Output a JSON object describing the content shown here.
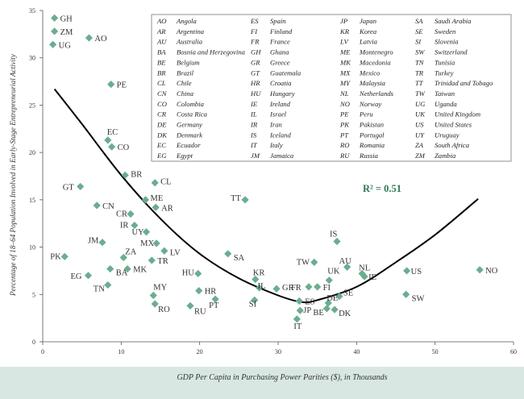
{
  "chart_data": {
    "type": "scatter",
    "xlabel": "GDP Per Capita in Purchasing Power Parities ($), in Thousands",
    "ylabel": "Percentage of 18–64 Population Involved in Early-Stage Entrepreneurial Activity",
    "xlim": [
      0,
      60
    ],
    "ylim": [
      0,
      35
    ],
    "xticks": [
      0,
      10,
      20,
      30,
      40,
      50,
      60
    ],
    "yticks": [
      0,
      5,
      10,
      15,
      20,
      25,
      30,
      35
    ],
    "grid": false,
    "legend_position": "top-right",
    "marker_color": "#6bad8f",
    "curve_color": "#000000",
    "r2_color": "#2e7a52",
    "annotation": "R² = 0.51",
    "trend_curve": [
      [
        1.5,
        26.7
      ],
      [
        5,
        23.0
      ],
      [
        10,
        17.6
      ],
      [
        15,
        13.0
      ],
      [
        20,
        9.3
      ],
      [
        25,
        6.7
      ],
      [
        30,
        4.9
      ],
      [
        33,
        4.2
      ],
      [
        35,
        4.4
      ],
      [
        40,
        5.8
      ],
      [
        45,
        8.4
      ],
      [
        50,
        11.3
      ],
      [
        55.5,
        15.1
      ]
    ],
    "points": [
      {
        "label": "GH",
        "x": 1.5,
        "y": 34.2
      },
      {
        "label": "ZM",
        "x": 1.5,
        "y": 32.8
      },
      {
        "label": "UG",
        "x": 1.3,
        "y": 31.4
      },
      {
        "label": "AO",
        "x": 5.9,
        "y": 32.1
      },
      {
        "label": "PE",
        "x": 8.7,
        "y": 27.2
      },
      {
        "label": "EC",
        "x": 8.3,
        "y": 21.3
      },
      {
        "label": "CO",
        "x": 8.8,
        "y": 20.6
      },
      {
        "label": "BR",
        "x": 10.5,
        "y": 17.6
      },
      {
        "label": "CL",
        "x": 14.3,
        "y": 16.8
      },
      {
        "label": "GT",
        "x": 4.8,
        "y": 16.4
      },
      {
        "label": "ME",
        "x": 13.1,
        "y": 15.0
      },
      {
        "label": "AR",
        "x": 14.4,
        "y": 14.2
      },
      {
        "label": "TT",
        "x": 25.8,
        "y": 15.0
      },
      {
        "label": "CN",
        "x": 6.9,
        "y": 14.4
      },
      {
        "label": "CR",
        "x": 11.2,
        "y": 13.5
      },
      {
        "label": "IR",
        "x": 11.7,
        "y": 12.3
      },
      {
        "label": "UY",
        "x": 13.2,
        "y": 11.6
      },
      {
        "label": "JM",
        "x": 7.6,
        "y": 10.5
      },
      {
        "label": "MX",
        "x": 14.5,
        "y": 10.4
      },
      {
        "label": "LV",
        "x": 15.5,
        "y": 9.6
      },
      {
        "label": "ZA",
        "x": 10.3,
        "y": 8.9
      },
      {
        "label": "TR",
        "x": 13.9,
        "y": 8.6
      },
      {
        "label": "SA",
        "x": 23.6,
        "y": 9.3
      },
      {
        "label": "IS",
        "x": 37.5,
        "y": 10.6
      },
      {
        "label": "PK",
        "x": 2.8,
        "y": 9.0
      },
      {
        "label": "MK",
        "x": 10.8,
        "y": 7.7
      },
      {
        "label": "BA",
        "x": 8.6,
        "y": 7.7
      },
      {
        "label": "EG",
        "x": 5.8,
        "y": 7.0
      },
      {
        "label": "TN",
        "x": 8.3,
        "y": 6.0
      },
      {
        "label": "HU",
        "x": 19.8,
        "y": 7.2
      },
      {
        "label": "KR",
        "x": 27.1,
        "y": 6.6
      },
      {
        "label": "IL",
        "x": 27.6,
        "y": 5.7
      },
      {
        "label": "GR",
        "x": 29.8,
        "y": 5.6
      },
      {
        "label": "FR",
        "x": 33.9,
        "y": 5.8
      },
      {
        "label": "FI",
        "x": 35.0,
        "y": 5.8
      },
      {
        "label": "TW",
        "x": 34.6,
        "y": 8.4
      },
      {
        "label": "AU",
        "x": 38.8,
        "y": 7.9
      },
      {
        "label": "UK",
        "x": 36.5,
        "y": 6.5
      },
      {
        "label": "NL",
        "x": 40.7,
        "y": 7.2
      },
      {
        "label": "IE",
        "x": 41.0,
        "y": 6.9
      },
      {
        "label": "US",
        "x": 46.4,
        "y": 7.5
      },
      {
        "label": "NO",
        "x": 55.7,
        "y": 7.6
      },
      {
        "label": "SE",
        "x": 37.8,
        "y": 4.8
      },
      {
        "label": "SW",
        "x": 46.3,
        "y": 5.0
      },
      {
        "label": "HR",
        "x": 19.9,
        "y": 5.4
      },
      {
        "label": "MY",
        "x": 14.1,
        "y": 4.9
      },
      {
        "label": "RO",
        "x": 14.3,
        "y": 4.0
      },
      {
        "label": "RU",
        "x": 18.8,
        "y": 3.8
      },
      {
        "label": "PT",
        "x": 22.0,
        "y": 4.5
      },
      {
        "label": "SI",
        "x": 27.0,
        "y": 4.4
      },
      {
        "label": "ES",
        "x": 32.7,
        "y": 4.3
      },
      {
        "label": "DE",
        "x": 36.4,
        "y": 4.1
      },
      {
        "label": "JP",
        "x": 32.8,
        "y": 3.3
      },
      {
        "label": "BE",
        "x": 36.2,
        "y": 3.5
      },
      {
        "label": "DK",
        "x": 37.2,
        "y": 3.4
      },
      {
        "label": "IT",
        "x": 32.4,
        "y": 2.4
      }
    ],
    "legend": [
      [
        [
          "AO",
          "Angola"
        ],
        [
          "AR",
          "Argentina"
        ],
        [
          "AU",
          "Australia"
        ],
        [
          "BA",
          "Bosnia and Herzegovina"
        ],
        [
          "BE",
          "Belgium"
        ],
        [
          "BR",
          "Brazil"
        ],
        [
          "CL",
          "Chile"
        ],
        [
          "CN",
          "China"
        ],
        [
          "CO",
          "Colombia"
        ],
        [
          "CR",
          "Costa Rica"
        ],
        [
          "DE",
          "Germany"
        ],
        [
          "DK",
          "Denmark"
        ],
        [
          "EC",
          "Ecuador"
        ],
        [
          "EG",
          "Egypt"
        ]
      ],
      [
        [
          "ES",
          "Spain"
        ],
        [
          "FI",
          "Finland"
        ],
        [
          "FR",
          "France"
        ],
        [
          "GH",
          "Ghana"
        ],
        [
          "GR",
          "Greece"
        ],
        [
          "GT",
          "Guatemala"
        ],
        [
          "HR",
          "Croatia"
        ],
        [
          "HU",
          "Hungary"
        ],
        [
          "IE",
          "Ireland"
        ],
        [
          "IL",
          "Israel"
        ],
        [
          "IR",
          "Iran"
        ],
        [
          "IS",
          "Iceland"
        ],
        [
          "IT",
          "Italy"
        ],
        [
          "JM",
          "Jamaica"
        ]
      ],
      [
        [
          "JP",
          "Japan"
        ],
        [
          "KR",
          "Korea"
        ],
        [
          "LV",
          "Latvia"
        ],
        [
          "ME",
          "Montenegro"
        ],
        [
          "MK",
          "Macedonia"
        ],
        [
          "MX",
          "Mexico"
        ],
        [
          "MY",
          "Malaysia"
        ],
        [
          "NL",
          "Netherlands"
        ],
        [
          "NO",
          "Norway"
        ],
        [
          "PE",
          "Peru"
        ],
        [
          "PK",
          "Pakistan"
        ],
        [
          "PT",
          "Portugal"
        ],
        [
          "RO",
          "Romania"
        ],
        [
          "RU",
          "Russia"
        ]
      ],
      [
        [
          "SA",
          "Saudi Arabia"
        ],
        [
          "SE",
          "Sweden"
        ],
        [
          "SI",
          "Slovenia"
        ],
        [
          "SW",
          "Switzerland"
        ],
        [
          "TN",
          "Tunisia"
        ],
        [
          "TR",
          "Turkey"
        ],
        [
          "TT",
          "Trinidad and Tobago"
        ],
        [
          "TW",
          "Taiwan"
        ],
        [
          "UG",
          "Uganda"
        ],
        [
          "UK",
          "United Kingdom"
        ],
        [
          "US",
          "United States"
        ],
        [
          "UY",
          "Uruguay"
        ],
        [
          "ZA",
          "South Africa"
        ],
        [
          "ZM",
          "Zambia"
        ]
      ]
    ]
  }
}
